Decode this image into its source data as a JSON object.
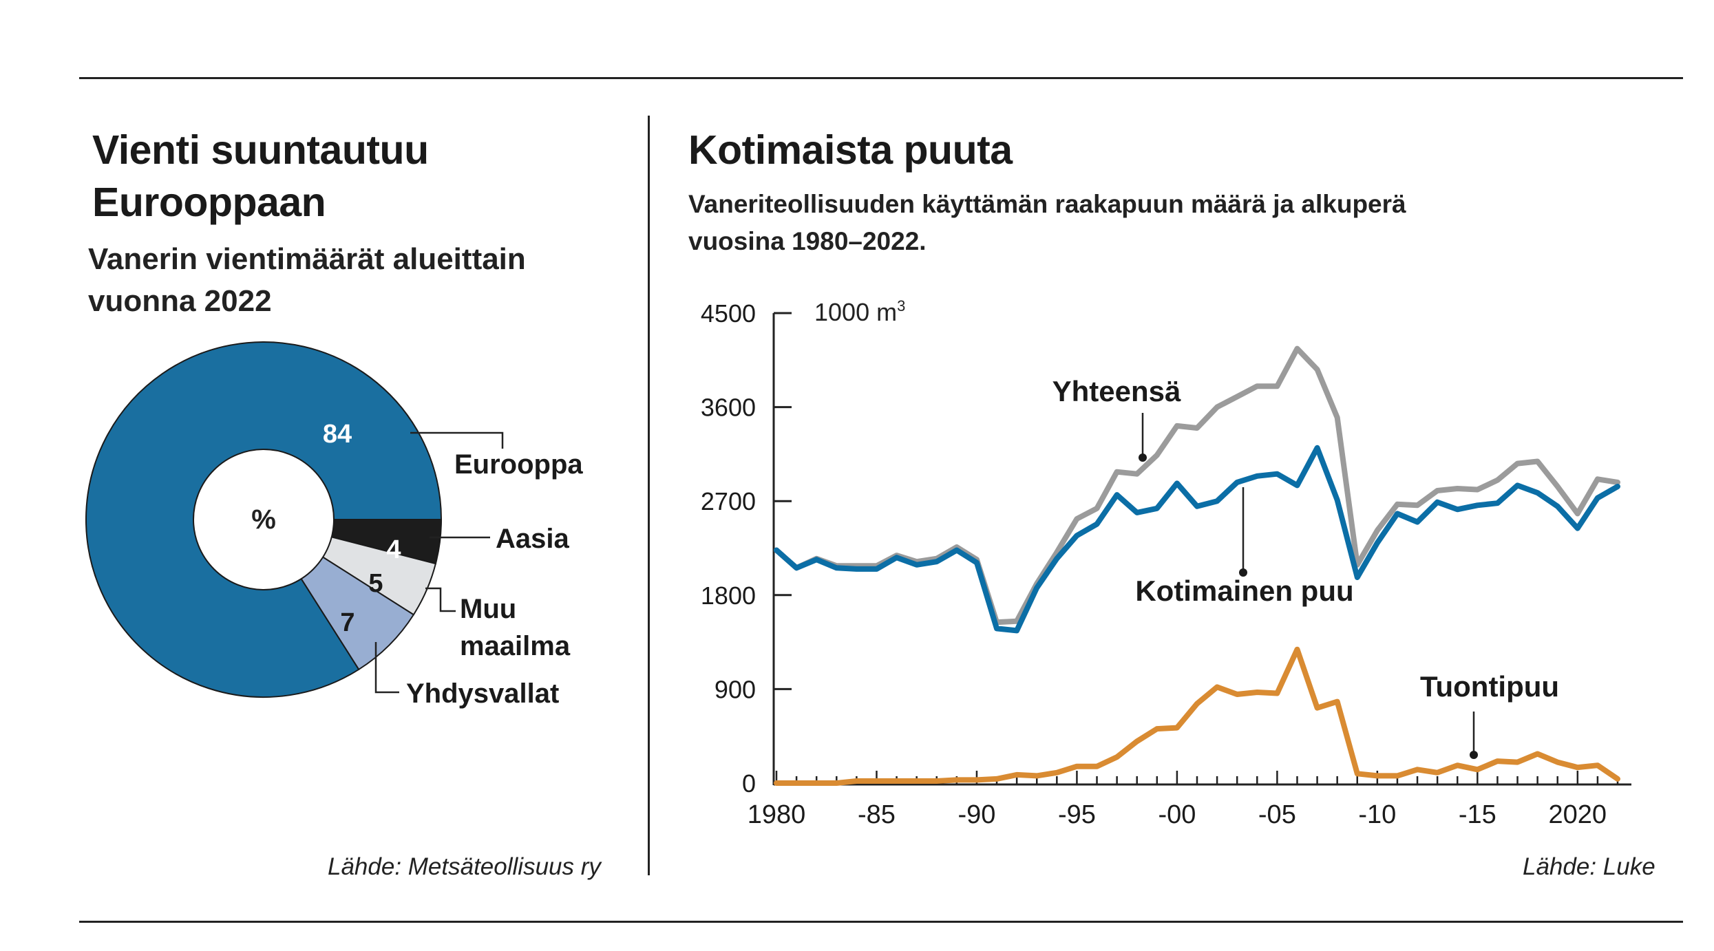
{
  "left_panel": {
    "title_line1": "Vienti suuntautuu",
    "title_line2": "Eurooppaan",
    "subtitle_line1": "Vanerin vientimäärät alueittain",
    "subtitle_line2": "vuonna 2022",
    "center_label": "%",
    "source": "Lähde: Metsäteollisuus ry"
  },
  "right_panel": {
    "title": "Kotimaista puuta",
    "subtitle_line1": "Vaneriteollisuuden käyttämän raakapuun määrä ja alkuperä",
    "subtitle_line2": "vuosina 1980–2022.",
    "unit": "1000 m",
    "unit_sup": "3",
    "source": "Lähde: Luke"
  },
  "colors": {
    "europe": "#1a6fa0",
    "asia": "#1c1c1c",
    "rest_of_world": "#e0e2e4",
    "usa": "#98aed2",
    "total": "#9b9b9b",
    "domestic": "#0b6ea6",
    "import": "#d98b32"
  },
  "chart_data": [
    {
      "type": "pie",
      "donut": true,
      "slices": [
        {
          "label": "Eurooppa",
          "value": 84,
          "display": "84",
          "color": "#1a6fa0"
        },
        {
          "label": "Aasia",
          "value": 4,
          "display": "4",
          "color": "#1c1c1c"
        },
        {
          "label": "Muu maailma",
          "value": 5,
          "display": "5",
          "color": "#e0e2e4"
        },
        {
          "label": "Yhdysvallat",
          "value": 7,
          "display": "7",
          "color": "#98aed2"
        }
      ]
    },
    {
      "type": "line",
      "x": [
        1980,
        1981,
        1982,
        1983,
        1984,
        1985,
        1986,
        1987,
        1988,
        1989,
        1990,
        1991,
        1992,
        1993,
        1994,
        1995,
        1996,
        1997,
        1998,
        1999,
        2000,
        2001,
        2002,
        2003,
        2004,
        2005,
        2006,
        2007,
        2008,
        2009,
        2010,
        2011,
        2012,
        2013,
        2014,
        2015,
        2016,
        2017,
        2018,
        2019,
        2020,
        2021,
        2022
      ],
      "xticks": [
        1980,
        1985,
        1990,
        1995,
        2000,
        2005,
        2010,
        2015,
        2020
      ],
      "xtick_labels": [
        "1980",
        "-85",
        "-90",
        "-95",
        "-00",
        "-05",
        "-10",
        "-15",
        "2020"
      ],
      "yticks": [
        0,
        900,
        1800,
        2700,
        3600,
        4500
      ],
      "ytick_labels": [
        "0",
        "900",
        "1800",
        "2700",
        "3600",
        "4500"
      ],
      "ylim": [
        0,
        4500
      ],
      "xlim": [
        1980,
        2022
      ],
      "series": [
        {
          "name": "Yhteensä",
          "key": "total",
          "values": [
            2230,
            2060,
            2150,
            2080,
            2080,
            2080,
            2180,
            2120,
            2150,
            2260,
            2140,
            1540,
            1550,
            1910,
            2210,
            2530,
            2630,
            2980,
            2960,
            3140,
            3420,
            3400,
            3600,
            3700,
            3800,
            3800,
            4160,
            3960,
            3500,
            2090,
            2420,
            2670,
            2660,
            2800,
            2820,
            2810,
            2900,
            3060,
            3080,
            2840,
            2580,
            2910,
            2880
          ]
        },
        {
          "name": "Kotimainen puu",
          "key": "domestic",
          "values": [
            2230,
            2060,
            2140,
            2060,
            2050,
            2050,
            2160,
            2090,
            2120,
            2230,
            2110,
            1480,
            1460,
            1870,
            2150,
            2370,
            2480,
            2760,
            2590,
            2630,
            2870,
            2650,
            2700,
            2880,
            2940,
            2960,
            2850,
            3210,
            2710,
            1970,
            2300,
            2580,
            2500,
            2690,
            2620,
            2660,
            2680,
            2850,
            2780,
            2650,
            2440,
            2730,
            2840
          ]
        },
        {
          "name": "Tuontipuu",
          "key": "import",
          "values": [
            0,
            0,
            0,
            0,
            20,
            20,
            20,
            20,
            20,
            30,
            30,
            40,
            80,
            70,
            100,
            160,
            160,
            250,
            400,
            520,
            530,
            760,
            920,
            850,
            870,
            860,
            1280,
            720,
            780,
            90,
            70,
            70,
            130,
            100,
            170,
            130,
            210,
            200,
            280,
            200,
            150,
            170,
            40
          ]
        }
      ]
    }
  ]
}
